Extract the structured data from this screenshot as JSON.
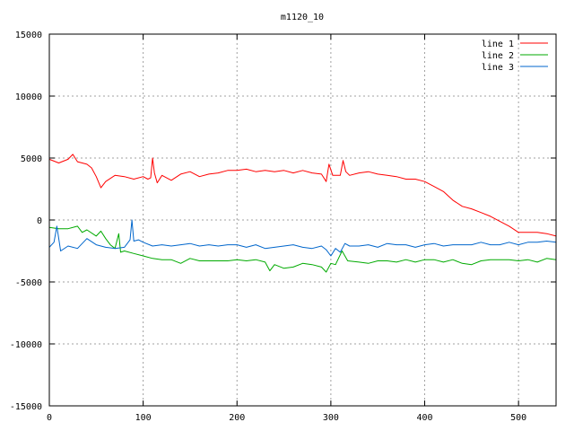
{
  "chart_data": {
    "type": "line",
    "title": "m1120_10",
    "xlabel": "",
    "ylabel": "",
    "xlim": [
      0,
      540
    ],
    "ylim": [
      -15000,
      15000
    ],
    "x_ticks": [
      0,
      100,
      200,
      300,
      400,
      500
    ],
    "y_ticks": [
      -15000,
      -10000,
      -5000,
      0,
      5000,
      10000,
      15000
    ],
    "x_tick_labels": [
      "0",
      "100",
      "200",
      "300",
      "400",
      "500"
    ],
    "y_tick_labels": [
      "-15000",
      "-10000",
      "-5000",
      "0",
      "5000",
      "10000",
      "15000"
    ],
    "grid": true,
    "legend_position": "top-right",
    "series": [
      {
        "name": "line 1",
        "color": "#ff0000",
        "points": [
          [
            0,
            4900
          ],
          [
            10,
            4600
          ],
          [
            20,
            4900
          ],
          [
            25,
            5300
          ],
          [
            30,
            4700
          ],
          [
            40,
            4500
          ],
          [
            45,
            4200
          ],
          [
            50,
            3500
          ],
          [
            55,
            2600
          ],
          [
            60,
            3100
          ],
          [
            70,
            3600
          ],
          [
            80,
            3500
          ],
          [
            90,
            3300
          ],
          [
            100,
            3500
          ],
          [
            105,
            3300
          ],
          [
            108,
            3400
          ],
          [
            110,
            5000
          ],
          [
            112,
            3800
          ],
          [
            115,
            3000
          ],
          [
            120,
            3600
          ],
          [
            130,
            3200
          ],
          [
            140,
            3700
          ],
          [
            150,
            3900
          ],
          [
            160,
            3500
          ],
          [
            170,
            3700
          ],
          [
            180,
            3800
          ],
          [
            190,
            4000
          ],
          [
            200,
            4000
          ],
          [
            210,
            4100
          ],
          [
            220,
            3900
          ],
          [
            230,
            4000
          ],
          [
            240,
            3900
          ],
          [
            250,
            4000
          ],
          [
            260,
            3800
          ],
          [
            270,
            4000
          ],
          [
            280,
            3800
          ],
          [
            290,
            3700
          ],
          [
            295,
            3100
          ],
          [
            298,
            4500
          ],
          [
            302,
            3600
          ],
          [
            310,
            3600
          ],
          [
            313,
            4800
          ],
          [
            316,
            3900
          ],
          [
            320,
            3600
          ],
          [
            330,
            3800
          ],
          [
            340,
            3900
          ],
          [
            350,
            3700
          ],
          [
            360,
            3600
          ],
          [
            370,
            3500
          ],
          [
            380,
            3300
          ],
          [
            390,
            3300
          ],
          [
            400,
            3100
          ],
          [
            410,
            2700
          ],
          [
            420,
            2300
          ],
          [
            430,
            1600
          ],
          [
            440,
            1100
          ],
          [
            450,
            900
          ],
          [
            460,
            600
          ],
          [
            470,
            300
          ],
          [
            480,
            -100
          ],
          [
            490,
            -500
          ],
          [
            500,
            -1000
          ],
          [
            510,
            -1000
          ],
          [
            520,
            -1000
          ],
          [
            530,
            -1100
          ],
          [
            540,
            -1300
          ]
        ]
      },
      {
        "name": "line 2",
        "color": "#00aa00",
        "points": [
          [
            0,
            -600
          ],
          [
            10,
            -700
          ],
          [
            20,
            -700
          ],
          [
            30,
            -500
          ],
          [
            35,
            -1000
          ],
          [
            40,
            -800
          ],
          [
            50,
            -1300
          ],
          [
            55,
            -900
          ],
          [
            60,
            -1500
          ],
          [
            65,
            -2000
          ],
          [
            70,
            -2300
          ],
          [
            74,
            -1100
          ],
          [
            76,
            -2600
          ],
          [
            80,
            -2500
          ],
          [
            90,
            -2700
          ],
          [
            100,
            -2900
          ],
          [
            110,
            -3100
          ],
          [
            120,
            -3200
          ],
          [
            130,
            -3200
          ],
          [
            140,
            -3500
          ],
          [
            150,
            -3100
          ],
          [
            160,
            -3300
          ],
          [
            170,
            -3300
          ],
          [
            180,
            -3300
          ],
          [
            190,
            -3300
          ],
          [
            200,
            -3200
          ],
          [
            210,
            -3300
          ],
          [
            220,
            -3200
          ],
          [
            230,
            -3400
          ],
          [
            235,
            -4100
          ],
          [
            240,
            -3600
          ],
          [
            250,
            -3900
          ],
          [
            260,
            -3800
          ],
          [
            270,
            -3500
          ],
          [
            280,
            -3600
          ],
          [
            290,
            -3800
          ],
          [
            295,
            -4200
          ],
          [
            300,
            -3500
          ],
          [
            305,
            -3600
          ],
          [
            312,
            -2500
          ],
          [
            318,
            -3300
          ],
          [
            330,
            -3400
          ],
          [
            340,
            -3500
          ],
          [
            350,
            -3300
          ],
          [
            360,
            -3300
          ],
          [
            370,
            -3400
          ],
          [
            380,
            -3200
          ],
          [
            390,
            -3400
          ],
          [
            400,
            -3200
          ],
          [
            410,
            -3200
          ],
          [
            420,
            -3400
          ],
          [
            430,
            -3200
          ],
          [
            440,
            -3500
          ],
          [
            450,
            -3600
          ],
          [
            460,
            -3300
          ],
          [
            470,
            -3200
          ],
          [
            480,
            -3200
          ],
          [
            490,
            -3200
          ],
          [
            500,
            -3300
          ],
          [
            510,
            -3200
          ],
          [
            520,
            -3400
          ],
          [
            530,
            -3100
          ],
          [
            540,
            -3200
          ]
        ]
      },
      {
        "name": "line 3",
        "color": "#0066cc",
        "points": [
          [
            0,
            -2200
          ],
          [
            5,
            -1800
          ],
          [
            8,
            -500
          ],
          [
            12,
            -2500
          ],
          [
            20,
            -2100
          ],
          [
            30,
            -2300
          ],
          [
            40,
            -1500
          ],
          [
            50,
            -2000
          ],
          [
            60,
            -2200
          ],
          [
            70,
            -2300
          ],
          [
            80,
            -2200
          ],
          [
            86,
            -1600
          ],
          [
            88,
            0
          ],
          [
            90,
            -1700
          ],
          [
            95,
            -1600
          ],
          [
            100,
            -1800
          ],
          [
            110,
            -2100
          ],
          [
            120,
            -2000
          ],
          [
            130,
            -2100
          ],
          [
            140,
            -2000
          ],
          [
            150,
            -1900
          ],
          [
            160,
            -2100
          ],
          [
            170,
            -2000
          ],
          [
            180,
            -2100
          ],
          [
            190,
            -2000
          ],
          [
            200,
            -2000
          ],
          [
            210,
            -2200
          ],
          [
            220,
            -2000
          ],
          [
            230,
            -2300
          ],
          [
            240,
            -2200
          ],
          [
            250,
            -2100
          ],
          [
            260,
            -2000
          ],
          [
            270,
            -2200
          ],
          [
            280,
            -2300
          ],
          [
            290,
            -2100
          ],
          [
            295,
            -2400
          ],
          [
            300,
            -2900
          ],
          [
            305,
            -2300
          ],
          [
            310,
            -2600
          ],
          [
            315,
            -1900
          ],
          [
            320,
            -2100
          ],
          [
            330,
            -2100
          ],
          [
            340,
            -2000
          ],
          [
            350,
            -2200
          ],
          [
            360,
            -1900
          ],
          [
            370,
            -2000
          ],
          [
            380,
            -2000
          ],
          [
            390,
            -2200
          ],
          [
            400,
            -2000
          ],
          [
            410,
            -1900
          ],
          [
            420,
            -2100
          ],
          [
            430,
            -2000
          ],
          [
            440,
            -2000
          ],
          [
            450,
            -2000
          ],
          [
            460,
            -1800
          ],
          [
            470,
            -2000
          ],
          [
            480,
            -2000
          ],
          [
            490,
            -1800
          ],
          [
            500,
            -2000
          ],
          [
            510,
            -1800
          ],
          [
            520,
            -1800
          ],
          [
            530,
            -1700
          ],
          [
            540,
            -1800
          ]
        ]
      }
    ]
  }
}
